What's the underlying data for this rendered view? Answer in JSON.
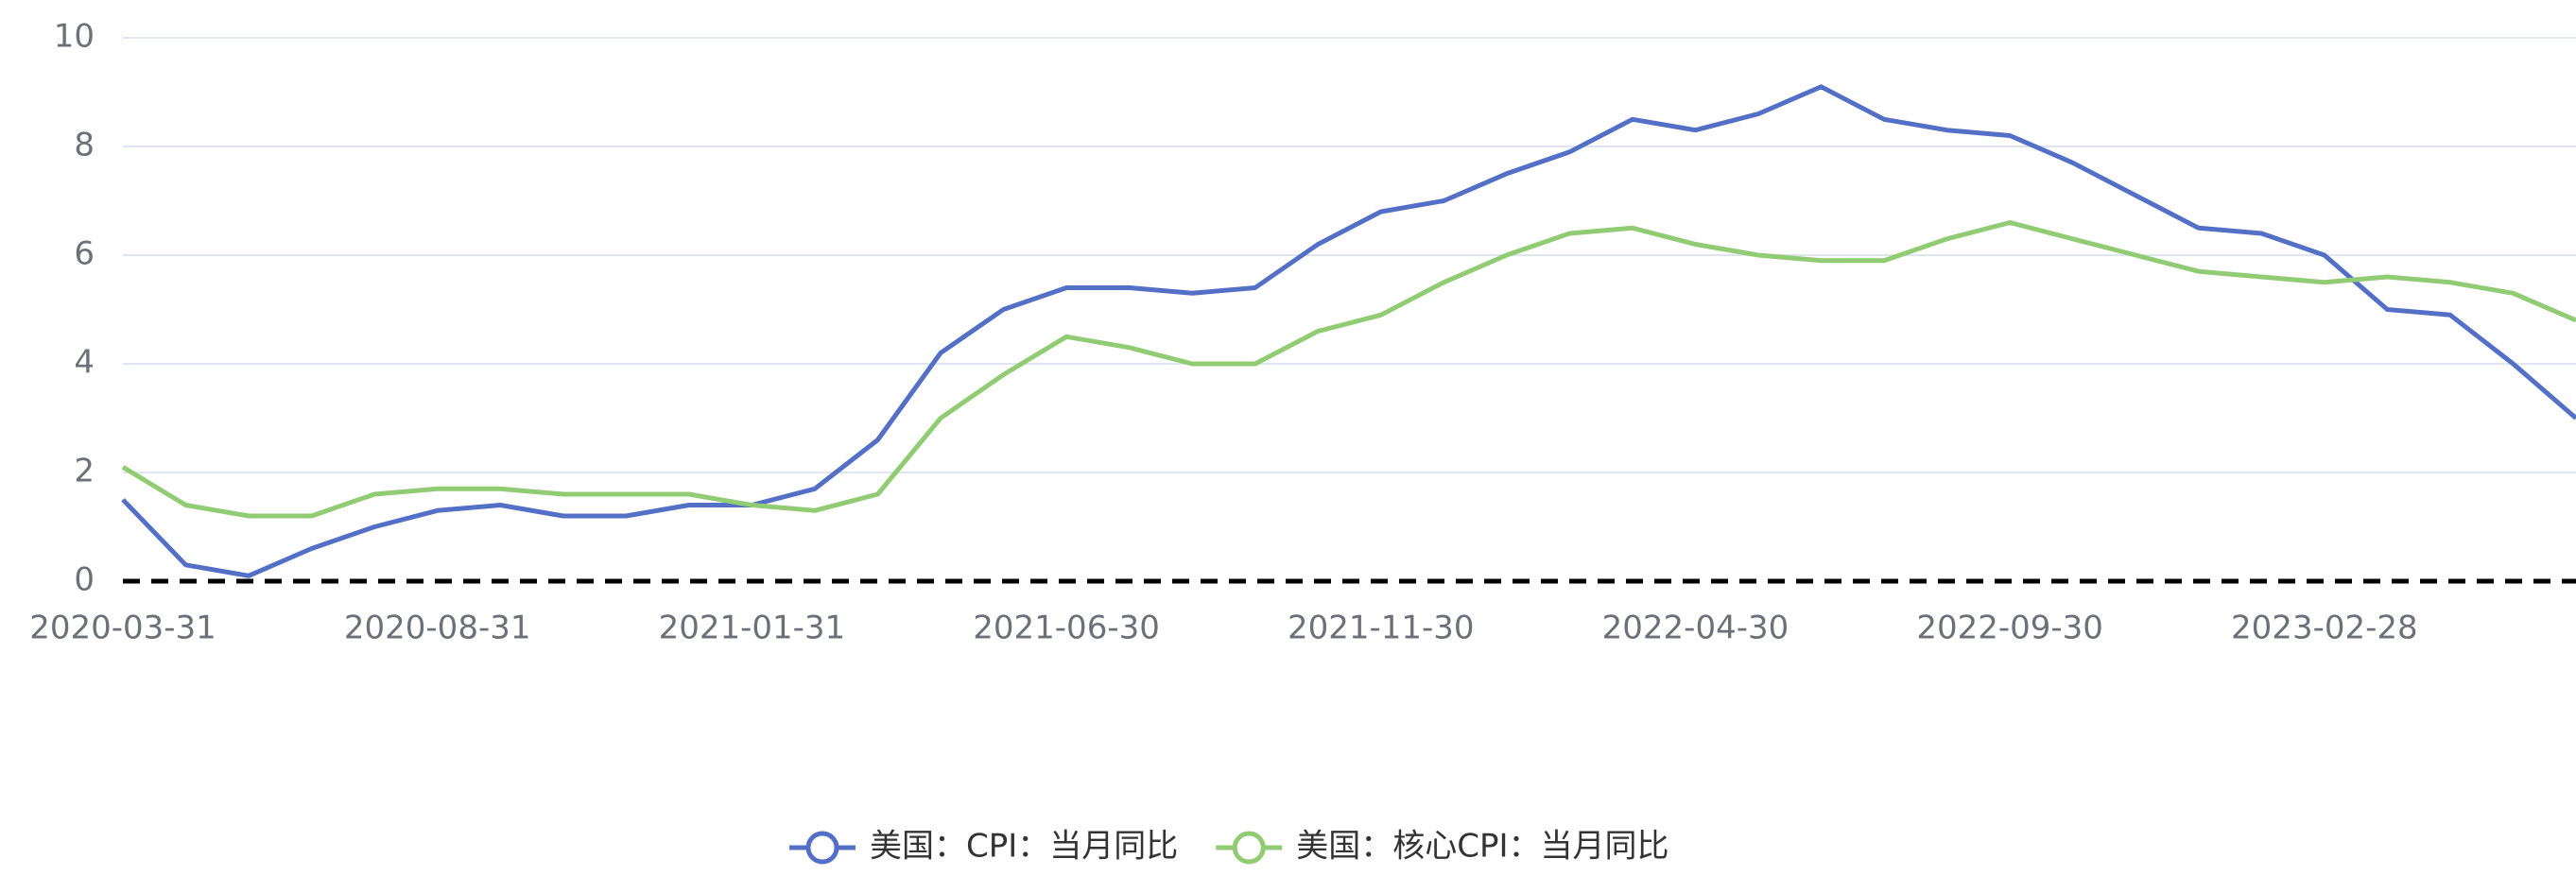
{
  "chart_data": {
    "type": "line",
    "categories": [
      "2020-03-31",
      null,
      null,
      null,
      null,
      "2020-08-31",
      null,
      null,
      null,
      null,
      "2021-01-31",
      null,
      null,
      null,
      null,
      "2021-06-30",
      null,
      null,
      null,
      null,
      "2021-11-30",
      null,
      null,
      null,
      null,
      "2022-04-30",
      null,
      null,
      null,
      null,
      "2022-09-30",
      null,
      null,
      null,
      null,
      "2023-02-28",
      null,
      null,
      null,
      null
    ],
    "series": [
      {
        "name": "美国：CPI：当月同比",
        "color": "#5470c6",
        "values": [
          1.5,
          0.3,
          0.1,
          0.6,
          1.0,
          1.3,
          1.4,
          1.2,
          1.2,
          1.4,
          1.4,
          1.7,
          2.6,
          4.2,
          5.0,
          5.4,
          5.4,
          5.3,
          5.4,
          6.2,
          6.8,
          7.0,
          7.5,
          7.9,
          8.5,
          8.3,
          8.6,
          9.1,
          8.5,
          8.3,
          8.2,
          7.7,
          7.1,
          6.5,
          6.4,
          6.0,
          5.0,
          4.9,
          4.0,
          3.0
        ]
      },
      {
        "name": "美国：核心CPI：当月同比",
        "color": "#91cc75",
        "values": [
          2.1,
          1.4,
          1.2,
          1.2,
          1.6,
          1.7,
          1.7,
          1.6,
          1.6,
          1.6,
          1.4,
          1.3,
          1.6,
          3.0,
          3.8,
          4.5,
          4.3,
          4.0,
          4.0,
          4.6,
          4.9,
          5.5,
          6.0,
          6.4,
          6.5,
          6.2,
          6.0,
          5.9,
          5.9,
          6.3,
          6.6,
          6.3,
          6.0,
          5.7,
          5.6,
          5.5,
          5.6,
          5.5,
          5.3,
          4.8
        ]
      }
    ],
    "ylim": [
      0,
      10
    ],
    "yticks": [
      0,
      2,
      4,
      6,
      8,
      10
    ],
    "grid": true,
    "legend": "bottom"
  }
}
